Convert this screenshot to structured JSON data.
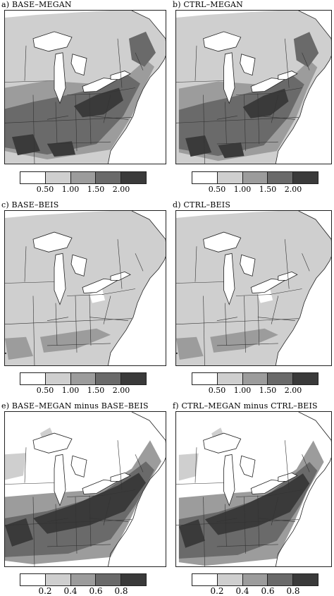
{
  "colors": {
    "white": "#ffffff",
    "light": "#cfcfcf",
    "medium": "#9c9c9c",
    "dark": "#6a6a6a",
    "darkest": "#3a3a3a"
  },
  "panels": [
    {
      "title": "a)  BASE–MEGAN",
      "variant": "megan-base"
    },
    {
      "title": "b)  CTRL–MEGAN",
      "variant": "megan-ctrl"
    },
    {
      "title": "c)  BASE–BEIS",
      "variant": "beis-base"
    },
    {
      "title": "d)  CTRL–BEIS",
      "variant": "beis-ctrl"
    },
    {
      "title": "e)  BASE–MEGAN  minus  BASE–BEIS",
      "variant": "diff-base"
    },
    {
      "title": "f)  CTRL–MEGAN  minus  CTRL–BEIS",
      "variant": "diff-ctrl"
    }
  ],
  "colorbars": {
    "emissions": {
      "ticks": [
        "0.50",
        "1.00",
        "1.50",
        "2.00"
      ]
    },
    "difference": {
      "ticks": [
        "0.2",
        "0.4",
        "0.6",
        "0.8"
      ]
    }
  }
}
